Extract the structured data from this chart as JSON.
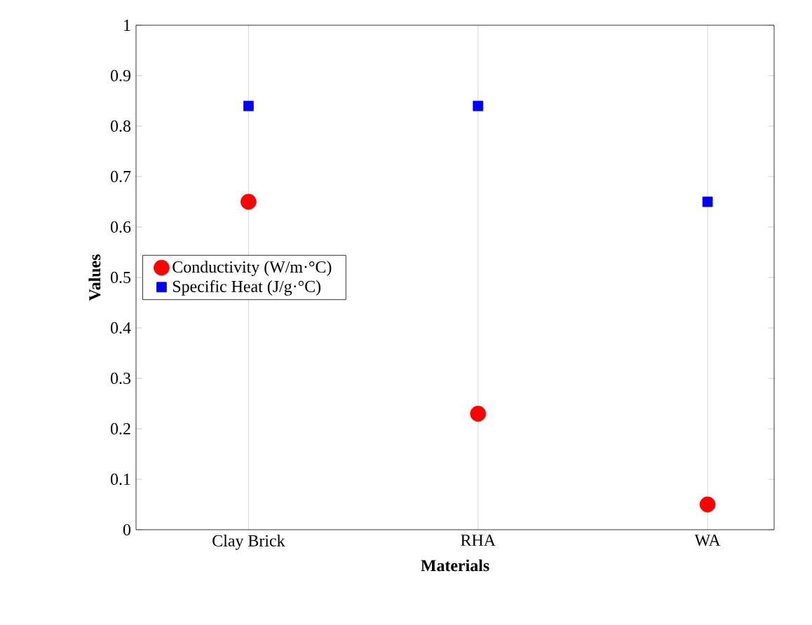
{
  "chart_data": {
    "type": "scatter",
    "xlabel": "Materials",
    "ylabel": "Values",
    "categories": [
      "Clay Brick",
      "RHA",
      "WA"
    ],
    "series": [
      {
        "name": "Conductivity (W/m·°C)",
        "color": "#ff0000",
        "marker": "circle",
        "values": [
          0.65,
          0.23,
          0.05
        ]
      },
      {
        "name": "Specific Heat (J/g·°C)",
        "color": "#0000ff",
        "marker": "square",
        "values": [
          0.84,
          0.84,
          0.65
        ]
      }
    ],
    "ylim": [
      0,
      1
    ],
    "yticks": [
      0,
      0.1,
      0.2,
      0.3,
      0.4,
      0.5,
      0.6,
      0.7,
      0.8,
      0.9,
      1
    ],
    "grid": "x",
    "legend": "left"
  }
}
